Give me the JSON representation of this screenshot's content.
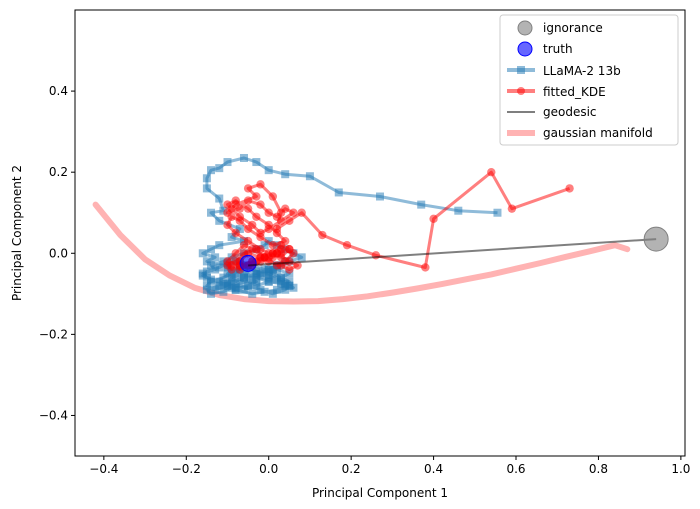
{
  "chart_data": {
    "type": "scatter",
    "xlabel": "Principal Component 1",
    "ylabel": "Principal Component 2",
    "xlim": [
      -0.47,
      1.01
    ],
    "ylim": [
      -0.5,
      0.6
    ],
    "x_ticks": [
      -0.4,
      -0.2,
      0.0,
      0.2,
      0.4,
      0.6,
      0.8,
      1.0
    ],
    "y_ticks": [
      -0.4,
      -0.2,
      0.0,
      0.2,
      0.4
    ],
    "x_tick_labels": [
      "−0.4",
      "−0.2",
      "0.0",
      "0.2",
      "0.4",
      "0.6",
      "0.8",
      "1.0"
    ],
    "y_tick_labels": [
      "−0.4",
      "−0.2",
      "0.0",
      "0.2",
      "0.4"
    ],
    "grid": false,
    "legend_position": "top-right",
    "legend": [
      "ignorance",
      "truth",
      "LLaMA-2 13b",
      "fitted_KDE",
      "geodesic",
      "gaussian manifold"
    ],
    "colors": {
      "ignorance": "#808080",
      "truth": "#0000ff",
      "llama": "#1f77b4",
      "kde": "#ff0000",
      "geodesic": "#000000",
      "manifold": "#ff9999"
    },
    "ignorance": {
      "x": 0.94,
      "y": 0.035
    },
    "truth": {
      "x": -0.05,
      "y": -0.025
    },
    "geodesic": {
      "x": [
        -0.05,
        0.94
      ],
      "y": [
        -0.03,
        0.035
      ]
    },
    "gaussian_manifold": {
      "x": [
        -0.42,
        -0.36,
        -0.3,
        -0.24,
        -0.18,
        -0.12,
        -0.06,
        0.0,
        0.06,
        0.12,
        0.18,
        0.24,
        0.3,
        0.36,
        0.42,
        0.48,
        0.54,
        0.6,
        0.66,
        0.72,
        0.78,
        0.84,
        0.87
      ],
      "y": [
        0.12,
        0.045,
        -0.015,
        -0.055,
        -0.085,
        -0.103,
        -0.113,
        -0.118,
        -0.119,
        -0.118,
        -0.113,
        -0.106,
        -0.097,
        -0.087,
        -0.076,
        -0.064,
        -0.052,
        -0.038,
        -0.024,
        -0.009,
        0.005,
        0.02,
        0.01
      ]
    },
    "series": [
      {
        "name": "LLaMA-2 13b",
        "x": [
          0.555,
          0.46,
          0.37,
          0.27,
          0.17,
          0.1,
          0.04,
          0.0,
          -0.03,
          -0.06,
          -0.1,
          -0.12,
          -0.14,
          -0.15,
          -0.15,
          -0.12,
          -0.11,
          -0.14,
          -0.12,
          -0.07,
          -0.09,
          -0.06,
          -0.12,
          -0.14,
          -0.16,
          -0.13,
          -0.15,
          -0.1,
          -0.08,
          -0.05,
          -0.07,
          -0.1,
          -0.06,
          -0.03,
          -0.05,
          -0.08,
          -0.1,
          -0.09,
          -0.05,
          -0.07,
          -0.1,
          -0.08,
          -0.03,
          0.0,
          0.03,
          0.05,
          0.02,
          -0.01,
          -0.04,
          -0.08,
          -0.1,
          -0.12,
          -0.15,
          -0.16,
          -0.13,
          -0.14,
          -0.11,
          -0.09,
          -0.06,
          -0.03,
          -0.01,
          0.0,
          0.02,
          0.04,
          0.06,
          0.08,
          0.05,
          0.03,
          0.01,
          -0.02,
          0.0,
          0.03,
          0.05,
          0.04,
          0.01,
          -0.02,
          -0.05,
          -0.08,
          -0.11,
          -0.14,
          -0.16,
          -0.15,
          -0.12,
          -0.1,
          -0.07,
          -0.04,
          -0.01,
          0.01,
          0.03,
          0.05,
          0.04,
          0.06,
          0.04,
          0.02,
          0.0,
          -0.03,
          -0.06,
          -0.09,
          -0.11,
          -0.14,
          -0.15,
          -0.13,
          -0.1,
          -0.08,
          -0.06,
          -0.03,
          0.0,
          0.02,
          0.04,
          0.02,
          0.0,
          -0.03,
          -0.06,
          -0.09,
          -0.12,
          -0.15,
          -0.14,
          -0.11,
          -0.09,
          -0.07,
          -0.04,
          -0.02,
          0.0,
          0.02,
          0.05,
          0.03,
          0.0,
          -0.03,
          -0.06
        ],
        "y": [
          0.1,
          0.105,
          0.12,
          0.14,
          0.15,
          0.19,
          0.195,
          0.205,
          0.225,
          0.235,
          0.225,
          0.21,
          0.205,
          0.185,
          0.16,
          0.135,
          0.105,
          0.1,
          0.08,
          0.06,
          0.04,
          0.03,
          0.02,
          0.01,
          0.0,
          -0.01,
          -0.02,
          -0.03,
          -0.02,
          -0.03,
          -0.04,
          -0.05,
          -0.06,
          -0.07,
          -0.08,
          -0.09,
          -0.075,
          -0.06,
          -0.05,
          -0.04,
          -0.035,
          -0.05,
          -0.06,
          -0.07,
          -0.075,
          -0.08,
          -0.09,
          -0.095,
          -0.1,
          -0.09,
          -0.08,
          -0.07,
          -0.06,
          -0.05,
          -0.04,
          -0.03,
          -0.02,
          -0.01,
          0.0,
          0.01,
          0.02,
          0.03,
          0.02,
          0.01,
          0.0,
          -0.01,
          -0.02,
          -0.03,
          -0.04,
          -0.05,
          -0.06,
          -0.07,
          -0.08,
          -0.09,
          -0.1,
          -0.09,
          -0.08,
          -0.085,
          -0.075,
          -0.065,
          -0.055,
          -0.045,
          -0.035,
          -0.025,
          -0.02,
          -0.03,
          -0.04,
          -0.05,
          -0.06,
          -0.07,
          -0.08,
          -0.085,
          -0.075,
          -0.065,
          -0.055,
          -0.045,
          -0.035,
          -0.05,
          -0.06,
          -0.07,
          -0.08,
          -0.09,
          -0.08,
          -0.07,
          -0.06,
          -0.05,
          -0.04,
          -0.03,
          -0.02,
          -0.03,
          -0.04,
          -0.05,
          -0.06,
          -0.07,
          -0.08,
          -0.09,
          -0.1,
          -0.095,
          -0.085,
          -0.075,
          -0.065,
          -0.055,
          -0.045,
          -0.04,
          -0.05,
          -0.06,
          -0.07,
          -0.08,
          -0.09
        ]
      },
      {
        "name": "fitted_KDE",
        "x": [
          0.73,
          0.59,
          0.54,
          0.4,
          0.38,
          0.26,
          0.19,
          0.13,
          0.08,
          0.05,
          0.02,
          0.03,
          0.01,
          -0.02,
          -0.05,
          -0.03,
          -0.08,
          -0.1,
          -0.07,
          -0.05,
          -0.02,
          0.0,
          0.02,
          0.04,
          0.06,
          0.03,
          0.0,
          -0.02,
          -0.04,
          -0.07,
          -0.09,
          -0.1,
          -0.08,
          -0.05,
          -0.03,
          0.0,
          0.02,
          0.04,
          0.01,
          -0.02,
          -0.05,
          -0.07,
          -0.09,
          -0.1,
          -0.08,
          -0.05,
          -0.02,
          0.0,
          0.03,
          0.05,
          0.03,
          0.01,
          -0.01,
          -0.04,
          -0.06,
          -0.08,
          -0.1,
          -0.07,
          -0.04,
          -0.02,
          0.01,
          0.03,
          0.06,
          0.04,
          0.02,
          -0.01,
          -0.03,
          -0.06,
          -0.08,
          -0.1,
          -0.09,
          -0.07,
          -0.04,
          -0.01,
          0.02,
          0.05,
          0.07,
          0.05,
          0.03,
          0.0,
          -0.02,
          -0.05,
          -0.07,
          -0.09,
          -0.07,
          -0.05,
          -0.03,
          0.0,
          0.02,
          0.05,
          0.03,
          0.01,
          -0.02,
          -0.04
        ],
        "y": [
          0.16,
          0.11,
          0.2,
          0.085,
          -0.035,
          -0.005,
          0.02,
          0.045,
          0.1,
          0.08,
          0.06,
          0.1,
          0.14,
          0.17,
          0.16,
          0.14,
          0.12,
          0.1,
          0.11,
          0.13,
          0.12,
          0.1,
          0.09,
          0.11,
          0.1,
          0.08,
          0.06,
          0.05,
          0.07,
          0.09,
          0.11,
          0.12,
          0.13,
          0.11,
          0.09,
          0.07,
          0.05,
          0.03,
          0.02,
          0.04,
          0.06,
          0.08,
          0.09,
          0.07,
          0.05,
          0.03,
          0.01,
          0.0,
          -0.01,
          0.01,
          0.02,
          0.0,
          -0.01,
          0.01,
          0.02,
          0.0,
          -0.02,
          -0.03,
          -0.02,
          -0.01,
          0.0,
          0.01,
          0.0,
          -0.02,
          -0.03,
          -0.01,
          0.01,
          0.0,
          -0.02,
          -0.03,
          -0.04,
          -0.03,
          -0.02,
          -0.01,
          0.0,
          -0.02,
          -0.03,
          -0.04,
          -0.03,
          -0.02,
          -0.01,
          0.0,
          -0.02,
          -0.03,
          -0.04,
          -0.03,
          -0.02,
          -0.01,
          0.0,
          0.01,
          0.0,
          -0.01,
          -0.02,
          -0.03
        ]
      }
    ]
  }
}
